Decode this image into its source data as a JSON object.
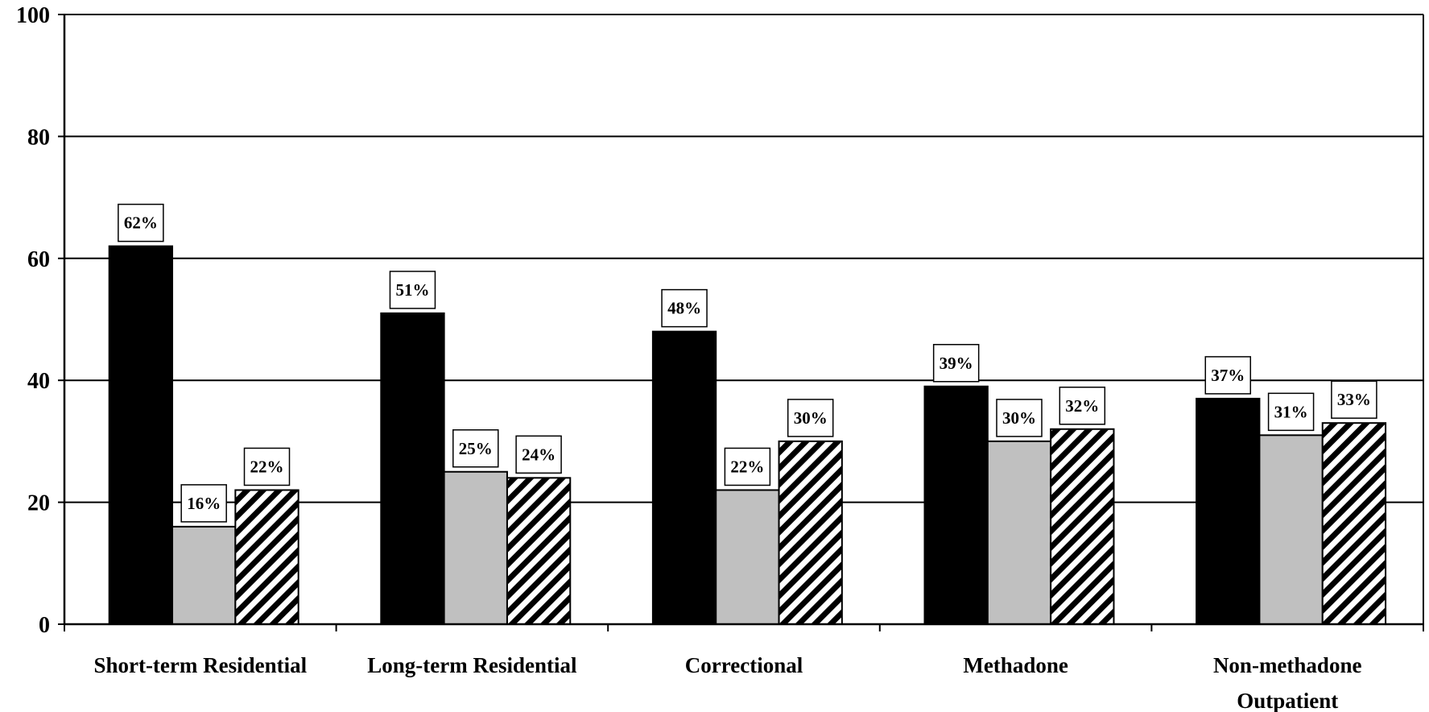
{
  "chart_data": {
    "type": "bar",
    "title": "",
    "xlabel": "",
    "ylabel": "",
    "ylim": [
      0,
      100
    ],
    "yticks": [
      0,
      20,
      40,
      60,
      80,
      100
    ],
    "grid": true,
    "legend": "none",
    "categories": [
      [
        "Short-term Residential"
      ],
      [
        "Long-term Residential"
      ],
      [
        "Correctional"
      ],
      [
        "Methadone"
      ],
      [
        "Non-methadone",
        "Outpatient"
      ]
    ],
    "series": [
      {
        "style": "solid-black",
        "color": "#000000",
        "values": [
          62,
          51,
          48,
          39,
          37
        ],
        "labels": [
          "62%",
          "51%",
          "48%",
          "39%",
          "37%"
        ]
      },
      {
        "style": "solid-gray",
        "color": "#c0c0c0",
        "values": [
          16,
          25,
          22,
          30,
          31
        ],
        "labels": [
          "16%",
          "25%",
          "22%",
          "30%",
          "31%"
        ]
      },
      {
        "style": "diagonal-hatch",
        "color": "#000000",
        "values": [
          22,
          24,
          30,
          32,
          33
        ],
        "labels": [
          "22%",
          "24%",
          "30%",
          "32%",
          "33%"
        ]
      }
    ]
  }
}
